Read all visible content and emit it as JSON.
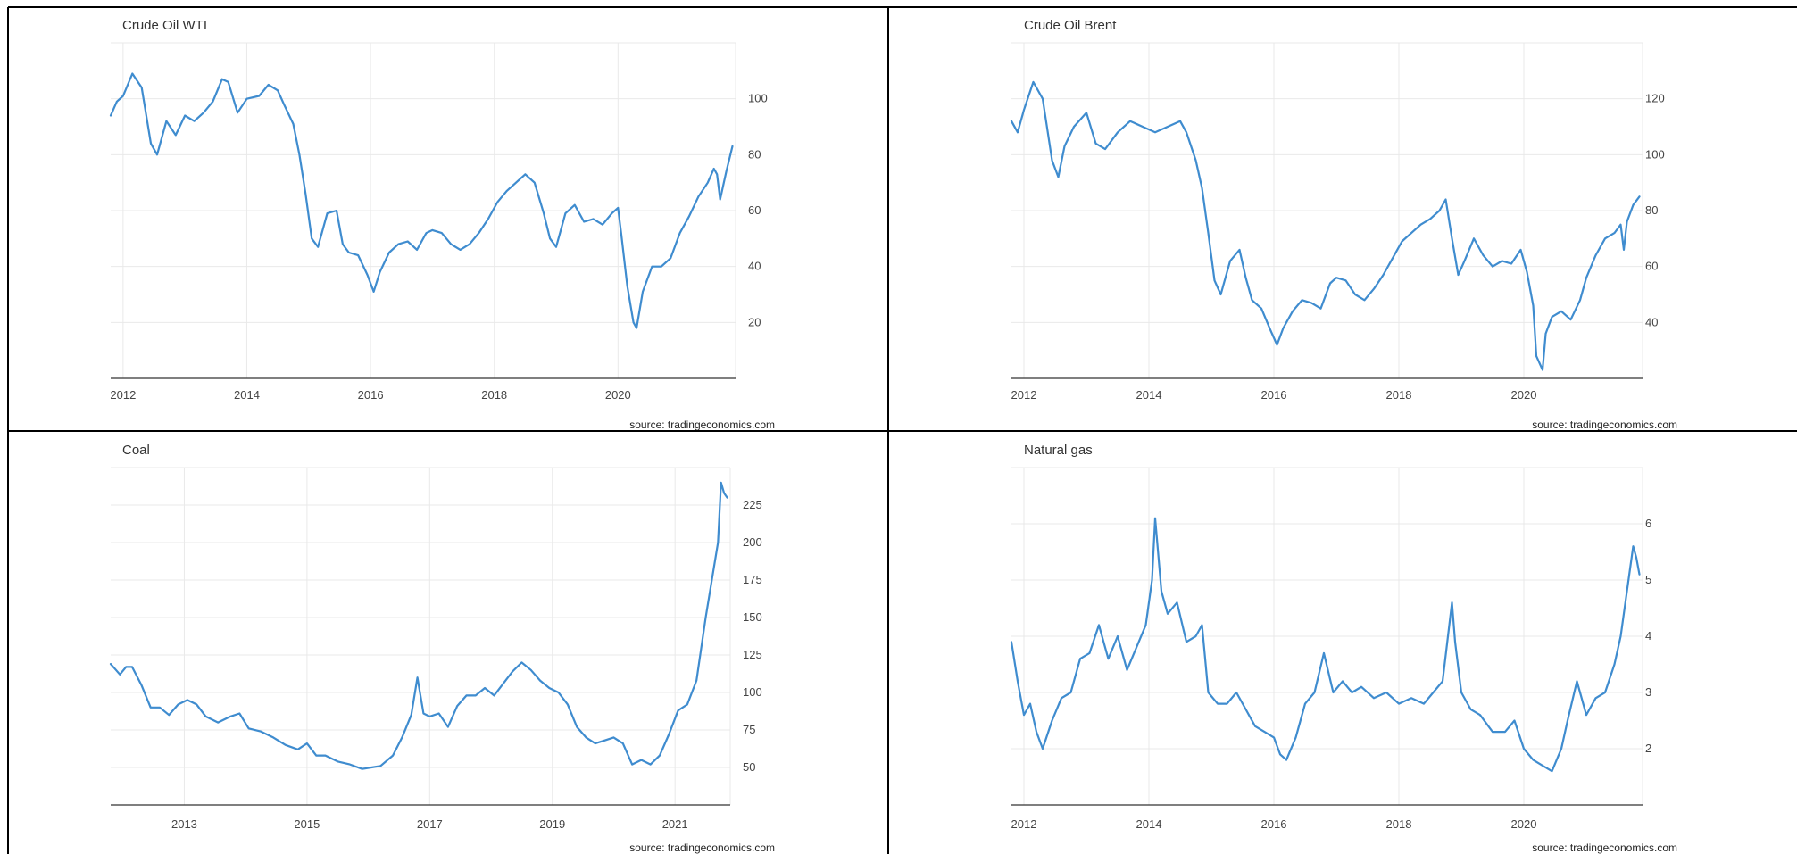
{
  "chart_data": [
    {
      "type": "line",
      "title": "Crude Oil WTI",
      "source": "source: tradingeconomics.com",
      "xlim": [
        2011.8,
        2021.9
      ],
      "ylim": [
        0,
        120
      ],
      "xticks": [
        2012,
        2014,
        2016,
        2018,
        2020
      ],
      "yticks": [
        20,
        40,
        60,
        80,
        100
      ],
      "series": [
        {
          "color": "#3f8ccf",
          "x": [
            2011.8,
            2011.9,
            2012.0,
            2012.15,
            2012.3,
            2012.45,
            2012.55,
            2012.7,
            2012.85,
            2013.0,
            2013.15,
            2013.3,
            2013.45,
            2013.6,
            2013.7,
            2013.85,
            2014.0,
            2014.2,
            2014.35,
            2014.5,
            2014.6,
            2014.75,
            2014.85,
            2014.95,
            2015.05,
            2015.15,
            2015.3,
            2015.45,
            2015.55,
            2015.65,
            2015.8,
            2015.95,
            2016.05,
            2016.15,
            2016.3,
            2016.45,
            2016.6,
            2016.75,
            2016.9,
            2017.0,
            2017.15,
            2017.3,
            2017.45,
            2017.6,
            2017.75,
            2017.9,
            2018.05,
            2018.2,
            2018.35,
            2018.5,
            2018.65,
            2018.8,
            2018.9,
            2019.0,
            2019.15,
            2019.3,
            2019.45,
            2019.6,
            2019.75,
            2019.9,
            2020.0,
            2020.05,
            2020.15,
            2020.25,
            2020.3,
            2020.4,
            2020.55,
            2020.7,
            2020.85,
            2021.0,
            2021.15,
            2021.3,
            2021.45,
            2021.55,
            2021.6,
            2021.65,
            2021.75,
            2021.85
          ],
          "values": [
            94,
            99,
            101,
            109,
            104,
            84,
            80,
            92,
            87,
            94,
            92,
            95,
            99,
            107,
            106,
            95,
            100,
            101,
            105,
            103,
            98,
            91,
            80,
            66,
            50,
            47,
            59,
            60,
            48,
            45,
            44,
            37,
            31,
            38,
            45,
            48,
            49,
            46,
            52,
            53,
            52,
            48,
            46,
            48,
            52,
            57,
            63,
            67,
            70,
            73,
            70,
            59,
            50,
            47,
            59,
            62,
            56,
            57,
            55,
            59,
            61,
            52,
            33,
            20,
            18,
            31,
            40,
            40,
            43,
            52,
            58,
            65,
            70,
            75,
            73,
            64,
            74,
            83
          ]
        }
      ]
    },
    {
      "type": "line",
      "title": "Crude Oil Brent",
      "source": "source: tradingeconomics.com",
      "xlim": [
        2011.8,
        2021.9
      ],
      "ylim": [
        20,
        140
      ],
      "xticks": [
        2012,
        2014,
        2016,
        2018,
        2020
      ],
      "yticks": [
        40,
        60,
        80,
        100,
        120
      ],
      "series": [
        {
          "color": "#3f8ccf",
          "x": [
            2011.8,
            2011.9,
            2012.0,
            2012.15,
            2012.3,
            2012.45,
            2012.55,
            2012.65,
            2012.8,
            2013.0,
            2013.15,
            2013.3,
            2013.5,
            2013.7,
            2013.9,
            2014.1,
            2014.3,
            2014.5,
            2014.6,
            2014.75,
            2014.85,
            2014.95,
            2015.05,
            2015.15,
            2015.3,
            2015.45,
            2015.55,
            2015.65,
            2015.8,
            2015.95,
            2016.05,
            2016.15,
            2016.3,
            2016.45,
            2016.6,
            2016.75,
            2016.9,
            2017.0,
            2017.15,
            2017.3,
            2017.45,
            2017.6,
            2017.75,
            2017.9,
            2018.05,
            2018.2,
            2018.35,
            2018.5,
            2018.65,
            2018.75,
            2018.85,
            2018.95,
            2019.05,
            2019.2,
            2019.35,
            2019.5,
            2019.65,
            2019.8,
            2019.95,
            2020.05,
            2020.15,
            2020.2,
            2020.3,
            2020.35,
            2020.45,
            2020.6,
            2020.75,
            2020.9,
            2021.0,
            2021.15,
            2021.3,
            2021.45,
            2021.55,
            2021.6,
            2021.65,
            2021.75,
            2021.85
          ],
          "values": [
            112,
            108,
            116,
            126,
            120,
            98,
            92,
            103,
            110,
            115,
            104,
            102,
            108,
            112,
            110,
            108,
            110,
            112,
            108,
            98,
            88,
            72,
            55,
            50,
            62,
            66,
            56,
            48,
            45,
            37,
            32,
            38,
            44,
            48,
            47,
            45,
            54,
            56,
            55,
            50,
            48,
            52,
            57,
            63,
            69,
            72,
            75,
            77,
            80,
            84,
            70,
            57,
            62,
            70,
            64,
            60,
            62,
            61,
            66,
            58,
            46,
            28,
            23,
            36,
            42,
            44,
            41,
            48,
            56,
            64,
            70,
            72,
            75,
            66,
            76,
            82,
            85
          ]
        }
      ]
    },
    {
      "type": "line",
      "title": "Coal",
      "source": "source: tradingeconomics.com",
      "xlim": [
        2011.8,
        2021.9
      ],
      "ylim": [
        25,
        250
      ],
      "xticks": [
        2013,
        2015,
        2017,
        2019,
        2021
      ],
      "yticks": [
        50,
        75,
        100,
        125,
        150,
        175,
        200,
        225
      ],
      "series": [
        {
          "color": "#3f8ccf",
          "x": [
            2011.8,
            2011.95,
            2012.05,
            2012.15,
            2012.3,
            2012.45,
            2012.6,
            2012.75,
            2012.9,
            2013.05,
            2013.2,
            2013.35,
            2013.55,
            2013.75,
            2013.9,
            2014.05,
            2014.25,
            2014.45,
            2014.65,
            2014.85,
            2015.0,
            2015.15,
            2015.3,
            2015.5,
            2015.7,
            2015.9,
            2016.05,
            2016.2,
            2016.4,
            2016.55,
            2016.7,
            2016.8,
            2016.9,
            2017.0,
            2017.15,
            2017.3,
            2017.45,
            2017.6,
            2017.75,
            2017.9,
            2018.05,
            2018.2,
            2018.35,
            2018.5,
            2018.65,
            2018.8,
            2018.95,
            2019.1,
            2019.25,
            2019.4,
            2019.55,
            2019.7,
            2019.85,
            2020.0,
            2020.15,
            2020.3,
            2020.45,
            2020.6,
            2020.75,
            2020.9,
            2021.05,
            2021.2,
            2021.35,
            2021.5,
            2021.6,
            2021.7,
            2021.75,
            2021.8,
            2021.85
          ],
          "values": [
            119,
            112,
            117,
            117,
            105,
            90,
            90,
            85,
            92,
            95,
            92,
            84,
            80,
            84,
            86,
            76,
            74,
            70,
            65,
            62,
            66,
            58,
            58,
            54,
            52,
            49,
            50,
            51,
            58,
            70,
            85,
            110,
            86,
            84,
            86,
            77,
            91,
            98,
            98,
            103,
            98,
            106,
            114,
            120,
            115,
            108,
            103,
            100,
            92,
            77,
            70,
            66,
            68,
            70,
            66,
            52,
            55,
            52,
            58,
            72,
            88,
            92,
            108,
            150,
            175,
            200,
            240,
            233,
            230
          ]
        }
      ]
    },
    {
      "type": "line",
      "title": "Natural gas",
      "source": "source: tradingeconomics.com",
      "xlim": [
        2011.8,
        2021.9
      ],
      "ylim": [
        1,
        7
      ],
      "xticks": [
        2012,
        2014,
        2016,
        2018,
        2020
      ],
      "yticks": [
        2,
        3,
        4,
        5,
        6
      ],
      "series": [
        {
          "color": "#3f8ccf",
          "x": [
            2011.8,
            2011.9,
            2012.0,
            2012.1,
            2012.2,
            2012.3,
            2012.45,
            2012.6,
            2012.75,
            2012.9,
            2013.05,
            2013.2,
            2013.35,
            2013.5,
            2013.65,
            2013.8,
            2013.95,
            2014.05,
            2014.1,
            2014.2,
            2014.3,
            2014.45,
            2014.6,
            2014.75,
            2014.85,
            2014.95,
            2015.1,
            2015.25,
            2015.4,
            2015.55,
            2015.7,
            2015.85,
            2016.0,
            2016.1,
            2016.2,
            2016.35,
            2016.5,
            2016.65,
            2016.8,
            2016.95,
            2017.1,
            2017.25,
            2017.4,
            2017.6,
            2017.8,
            2018.0,
            2018.2,
            2018.4,
            2018.55,
            2018.7,
            2018.85,
            2018.9,
            2019.0,
            2019.15,
            2019.3,
            2019.5,
            2019.7,
            2019.85,
            2020.0,
            2020.15,
            2020.3,
            2020.45,
            2020.6,
            2020.7,
            2020.85,
            2021.0,
            2021.15,
            2021.3,
            2021.45,
            2021.55,
            2021.7,
            2021.75,
            2021.8,
            2021.85
          ],
          "values": [
            3.9,
            3.2,
            2.6,
            2.8,
            2.3,
            2.0,
            2.5,
            2.9,
            3.0,
            3.6,
            3.7,
            4.2,
            3.6,
            4.0,
            3.4,
            3.8,
            4.2,
            5.0,
            6.1,
            4.8,
            4.4,
            4.6,
            3.9,
            4.0,
            4.2,
            3.0,
            2.8,
            2.8,
            3.0,
            2.7,
            2.4,
            2.3,
            2.2,
            1.9,
            1.8,
            2.2,
            2.8,
            3.0,
            3.7,
            3.0,
            3.2,
            3.0,
            3.1,
            2.9,
            3.0,
            2.8,
            2.9,
            2.8,
            3.0,
            3.2,
            4.6,
            3.9,
            3.0,
            2.7,
            2.6,
            2.3,
            2.3,
            2.5,
            2.0,
            1.8,
            1.7,
            1.6,
            2.0,
            2.5,
            3.2,
            2.6,
            2.9,
            3.0,
            3.5,
            4.0,
            5.2,
            5.6,
            5.4,
            5.1
          ]
        }
      ]
    }
  ]
}
